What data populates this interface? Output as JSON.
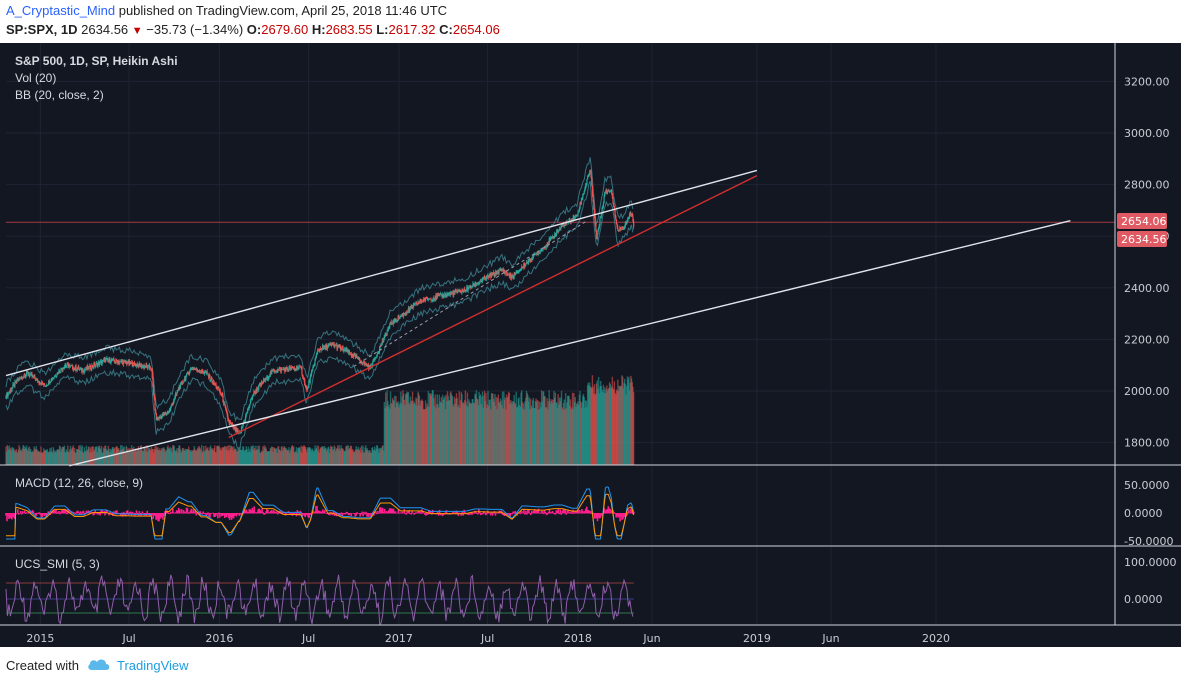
{
  "header": {
    "user": "A_Cryptastic_Mind",
    "published": " published on TradingView.com, April 25, 2018 11:46 UTC",
    "symbol": "SP:SPX, 1D",
    "last": "2634.56",
    "change": "−35.73 (−1.34%)",
    "o_label": "O:",
    "o_value": "2679.60",
    "h_label": "H:",
    "h_value": "2683.55",
    "l_label": "L:",
    "l_value": "2617.32",
    "c_label": "C:",
    "c_value": "2654.06"
  },
  "legend": {
    "main": "S&P 500, 1D, SP, Heikin Ashi",
    "vol": "Vol (20)",
    "bb": "BB (20, close, 2)",
    "macd": "MACD (12, 26, close, 9)",
    "smi": "UCS_SMI (5, 3)"
  },
  "colors": {
    "background": "#131722",
    "candle_up": "#26a69a",
    "candle_down": "#ef5350",
    "trendline_white": "#e0e3eb",
    "trendline_red": "#d32f2f",
    "macd_line": "#2196f3",
    "signal_line": "#ff9800",
    "histogram": "#ff1f8e",
    "price_tag": "#e05a63"
  },
  "price_tags": {
    "close": "2654.06",
    "last": "2634.56"
  },
  "footer": {
    "created_with": "Created with",
    "brand": "TradingView"
  },
  "chart_data": {
    "type": "line",
    "title": "S&P 500, 1D, SP, Heikin Ashi",
    "x_ticks": [
      "2015",
      "Jul",
      "2016",
      "Jul",
      "2017",
      "Jul",
      "2018",
      "Jun",
      "2019",
      "Jun",
      "2020"
    ],
    "y_ticks": [
      "3200.00",
      "3000.00",
      "2800.00",
      "2600.00",
      "2400.00",
      "2200.00",
      "2000.00",
      "1800.00"
    ],
    "macd_ticks": [
      "50.0000",
      "0.0000",
      "-50.0000"
    ],
    "smi_ticks": [
      "100.0000",
      "0.0000"
    ],
    "x_domain": [
      "2014-10-23",
      "2020-12-31"
    ],
    "ylim": [
      1710,
      3300
    ],
    "grid": true,
    "series": [
      {
        "name": "S&P 500",
        "x": [
          "2014-10-23",
          "2014-11-15",
          "2014-12-05",
          "2015-01-10",
          "2015-02-20",
          "2015-03-30",
          "2015-05-15",
          "2015-06-25",
          "2015-08-15",
          "2015-08-25",
          "2015-09-20",
          "2015-10-10",
          "2015-11-05",
          "2015-12-05",
          "2016-01-05",
          "2016-01-20",
          "2016-02-11",
          "2016-03-10",
          "2016-04-20",
          "2016-06-15",
          "2016-06-27",
          "2016-07-20",
          "2016-08-20",
          "2016-09-20",
          "2016-11-04",
          "2016-12-15",
          "2017-02-15",
          "2017-03-30",
          "2017-05-15",
          "2017-06-20",
          "2017-07-30",
          "2017-08-20",
          "2017-09-20",
          "2017-10-25",
          "2017-11-30",
          "2017-12-30",
          "2018-01-26",
          "2018-02-08",
          "2018-02-25",
          "2018-03-10",
          "2018-03-23",
          "2018-04-05",
          "2018-04-20",
          "2018-04-25"
        ],
        "y": [
          1980,
          2040,
          2070,
          2020,
          2100,
          2080,
          2120,
          2110,
          2090,
          1890,
          1920,
          2010,
          2090,
          2070,
          1990,
          1880,
          1830,
          1990,
          2080,
          2090,
          2000,
          2160,
          2180,
          2150,
          2090,
          2260,
          2350,
          2370,
          2390,
          2430,
          2470,
          2440,
          2500,
          2560,
          2640,
          2680,
          2860,
          2590,
          2770,
          2780,
          2620,
          2640,
          2690,
          2640
        ]
      }
    ],
    "trendlines": [
      {
        "name": "upper channel",
        "points": [
          [
            "2014-10-23",
            2060
          ],
          [
            "2019-01-01",
            2855
          ]
        ]
      },
      {
        "name": "support",
        "points": [
          [
            "2016-01-20",
            1820
          ],
          [
            "2019-01-01",
            2835
          ]
        ]
      },
      {
        "name": "lower channel",
        "points": [
          [
            "2015-03-01",
            1710
          ],
          [
            "2020-10-01",
            2660
          ]
        ]
      }
    ]
  }
}
